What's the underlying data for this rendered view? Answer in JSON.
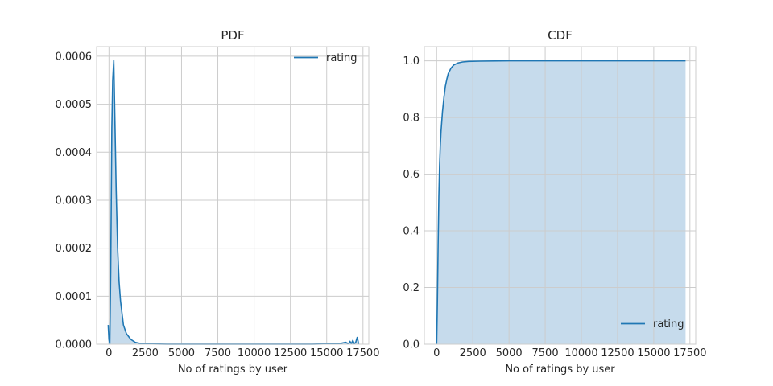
{
  "colors": {
    "line": "#1f77b4",
    "fill": "#c6dbec",
    "grid": "#cccccc",
    "spine": "#cccccc",
    "text": "#262626"
  },
  "chart_data": [
    {
      "type": "area",
      "title": "PDF",
      "xlabel": "No of ratings by user",
      "ylabel": "",
      "xlim": [
        -850,
        17900
      ],
      "ylim": [
        0,
        0.00062
      ],
      "grid": true,
      "legend": {
        "position": "top-right",
        "entries": [
          "rating"
        ]
      },
      "xticks": [
        0,
        2500,
        5000,
        7500,
        10000,
        12500,
        15000,
        17500
      ],
      "xtick_labels": [
        "0",
        "2500",
        "5000",
        "7500",
        "10000",
        "12500",
        "15000",
        "17500"
      ],
      "yticks": [
        0,
        0.0001,
        0.0002,
        0.0003,
        0.0004,
        0.0005,
        0.0006
      ],
      "ytick_labels": [
        "0.0000",
        "0.0001",
        "0.0002",
        "0.0003",
        "0.0004",
        "0.0005",
        "0.0006"
      ],
      "series": [
        {
          "name": "rating",
          "x": [
            -50,
            0,
            60,
            120,
            200,
            260,
            330,
            420,
            500,
            600,
            700,
            800,
            1000,
            1200,
            1500,
            1800,
            2200,
            3000,
            4000,
            6000,
            8000,
            10000,
            12000,
            14000,
            15500,
            16000,
            16300,
            16500,
            16600,
            16700,
            16800,
            16900,
            17000,
            17100,
            17150,
            17200
          ],
          "y": [
            4e-05,
            1e-05,
            0.0,
            0.00015,
            0.00045,
            0.00055,
            0.000592,
            0.00045,
            0.00032,
            0.0002,
            0.00013,
            9e-05,
            4e-05,
            2.2e-05,
            1e-05,
            4e-06,
            1.5e-06,
            5e-07,
            2e-07,
            1e-07,
            1e-07,
            1e-07,
            1e-07,
            2e-07,
            1e-06,
            2e-06,
            4e-06,
            1e-06,
            6e-06,
            1e-06,
            8e-06,
            1e-06,
            4e-06,
            1.4e-05,
            8e-06,
            0.0
          ]
        }
      ]
    },
    {
      "type": "area",
      "title": "CDF",
      "xlabel": "No of ratings by user",
      "ylabel": "",
      "xlim": [
        -850,
        17900
      ],
      "ylim": [
        0,
        1.05
      ],
      "grid": true,
      "legend": {
        "position": "bottom-right",
        "entries": [
          "rating"
        ]
      },
      "xticks": [
        0,
        2500,
        5000,
        7500,
        10000,
        12500,
        15000,
        17500
      ],
      "xtick_labels": [
        "0",
        "2500",
        "5000",
        "7500",
        "10000",
        "12500",
        "15000",
        "17500"
      ],
      "yticks": [
        0,
        0.2,
        0.4,
        0.6,
        0.8,
        1.0
      ],
      "ytick_labels": [
        "0.0",
        "0.2",
        "0.4",
        "0.6",
        "0.8",
        "1.0"
      ],
      "series": [
        {
          "name": "rating",
          "x": [
            0,
            50,
            100,
            150,
            200,
            250,
            300,
            400,
            500,
            600,
            700,
            800,
            1000,
            1200,
            1500,
            1800,
            2200,
            3000,
            5000,
            10000,
            15000,
            17200
          ],
          "y": [
            0.0,
            0.15,
            0.35,
            0.52,
            0.63,
            0.7,
            0.75,
            0.82,
            0.87,
            0.91,
            0.935,
            0.955,
            0.975,
            0.986,
            0.993,
            0.996,
            0.998,
            0.999,
            1.0,
            1.0,
            1.0,
            1.0
          ]
        }
      ]
    }
  ]
}
